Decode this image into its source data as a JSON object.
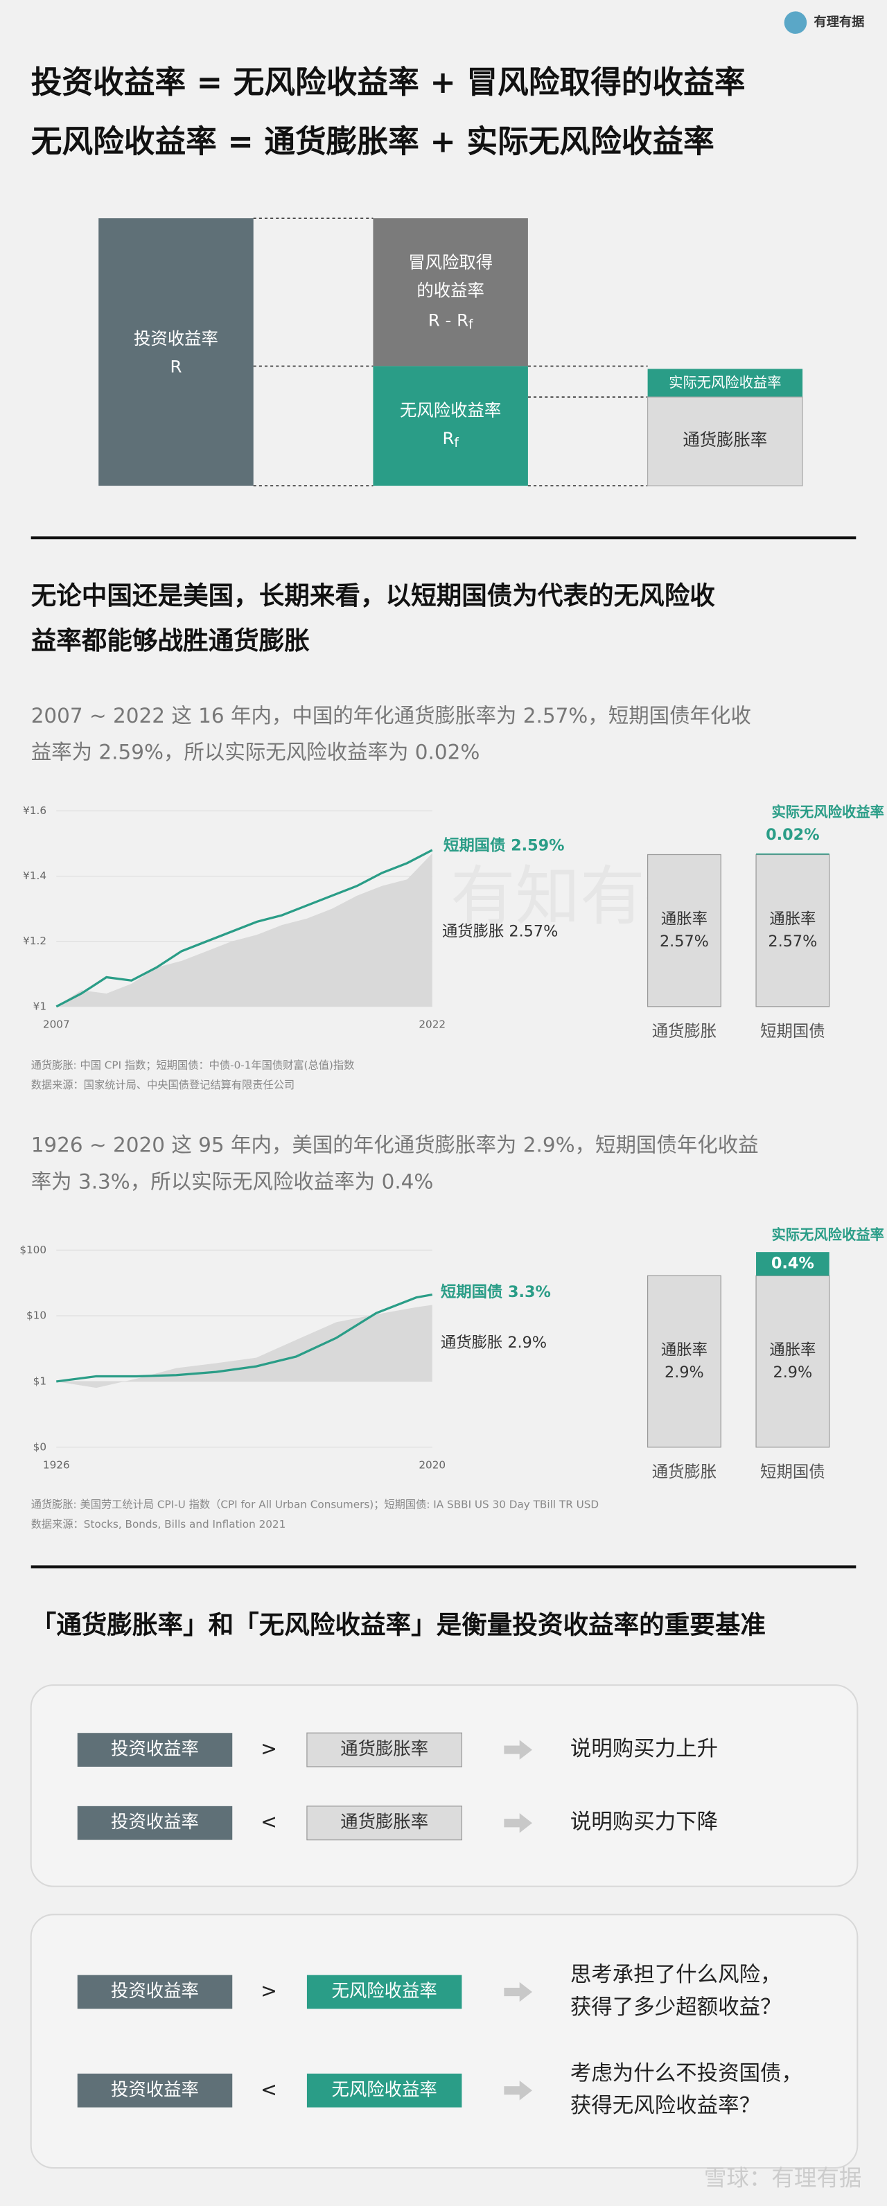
{
  "logo": {
    "name": "有理有据"
  },
  "header": {
    "line1": "投资收益率 = 无风险收益率 + 冒风险取得的收益率",
    "line2": "无风险收益率 = 通货膨胀率 + 实际无风险收益率"
  },
  "diagram": {
    "total": "投资收益率",
    "total_symbol": "R",
    "risk_lines": [
      "冒风险取得",
      "的收益率"
    ],
    "risk_formula": {
      "main": "R - R",
      "sub": "f"
    },
    "riskfree": "无风险收益率",
    "riskfree_symbol": {
      "main": "R",
      "sub": "f"
    },
    "real": "实际无风险收益率",
    "inflation": "通货膨胀率"
  },
  "section1": {
    "title_lines": [
      "无论中国还是美国，长期来看，以短期国债为代表的无风险收",
      "益率都能够战胜通货膨胀"
    ],
    "china_text": [
      "2007 ~ 2022 这 16 年内，中国的年化通货膨胀率为 2.57%，短期国债年化收",
      "益率为 2.59%，所以实际无风险收益率为 0.02%"
    ],
    "china_sources": [
      "通货膨胀: 中国 CPI 指数；短期国债：中债-0-1年国债财富(总值)指数",
      "数据来源：国家统计局、中央国债登记结算有限责任公司"
    ],
    "us_text": [
      "1926 ~ 2020 这 95 年内，美国的年化通货膨胀率为 2.9%，短期国债年化收益",
      "率为 3.3%，所以实际无风险收益率为 0.4%"
    ],
    "us_sources": [
      "通货膨胀: 美国劳工统计局 CPI-U 指数（CPI for All Urban Consumers)；短期国债: IA SBBI US 30 Day TBill TR USD",
      "数据来源：Stocks, Bonds, Bills and Inflation 2021"
    ]
  },
  "chart_data": [
    {
      "type": "line",
      "x": [
        2007,
        2008,
        2009,
        2010,
        2011,
        2012,
        2013,
        2014,
        2015,
        2016,
        2017,
        2018,
        2019,
        2020,
        2021,
        2022
      ],
      "xlim": [
        2007,
        2022
      ],
      "xticks": [
        2007,
        2022
      ],
      "ylim": [
        1,
        1.6
      ],
      "yticks": [
        {
          "value": 1,
          "label": "¥1"
        },
        {
          "value": 1.2,
          "label": "¥1.2"
        },
        {
          "value": 1.4,
          "label": "¥1.4"
        },
        {
          "value": 1.6,
          "label": "¥1.6"
        }
      ],
      "log_scale": false,
      "series": [
        {
          "name": "通货膨胀 2.57%",
          "color": "#d9d9d9",
          "kind": "area",
          "values": [
            1,
            1.05,
            1.04,
            1.07,
            1.12,
            1.14,
            1.17,
            1.2,
            1.22,
            1.25,
            1.27,
            1.3,
            1.34,
            1.37,
            1.39,
            1.47
          ]
        },
        {
          "name": "短期国债 2.59%",
          "color": "#2a9d87",
          "kind": "line",
          "values": [
            1,
            1.04,
            1.09,
            1.08,
            1.12,
            1.17,
            1.2,
            1.23,
            1.26,
            1.28,
            1.31,
            1.34,
            1.37,
            1.41,
            1.44,
            1.48
          ]
        }
      ]
    },
    {
      "type": "stacked_bar",
      "categories": [
        "通货膨胀",
        "短期国债"
      ],
      "series": [
        {
          "name": "通胀率",
          "color": "#dcdcdc",
          "values": [
            2.57,
            2.57
          ],
          "value_labels": [
            "2.57%",
            "2.57%"
          ]
        },
        {
          "name": "实际无风险收益率",
          "color": "#2a9d87",
          "values": [
            null,
            0.02
          ],
          "value_labels": [
            null,
            "0.02%"
          ]
        }
      ]
    },
    {
      "type": "line",
      "x": [
        1926,
        1936,
        1946,
        1956,
        1966,
        1976,
        1986,
        1996,
        2006,
        2016,
        2020
      ],
      "xlim": [
        1926,
        2020
      ],
      "xticks": [
        1926,
        2020
      ],
      "ylim": [
        0.1,
        100
      ],
      "yticks": [
        {
          "value": 0.1,
          "label": "$0"
        },
        {
          "value": 1,
          "label": "$1"
        },
        {
          "value": 10,
          "label": "$10"
        },
        {
          "value": 100,
          "label": "$100"
        }
      ],
      "log_scale": true,
      "series": [
        {
          "name": "通货膨胀 2.9%",
          "color": "#d9d9d9",
          "kind": "area",
          "values": [
            1,
            0.8,
            1.1,
            1.6,
            1.9,
            2.3,
            4.3,
            8,
            10.5,
            13.5,
            14.6
          ]
        },
        {
          "name": "短期国债 3.3%",
          "color": "#2a9d87",
          "kind": "line",
          "values": [
            1,
            1.2,
            1.2,
            1.25,
            1.4,
            1.7,
            2.4,
            4.6,
            11,
            19,
            21
          ]
        }
      ]
    },
    {
      "type": "stacked_bar",
      "categories": [
        "通货膨胀",
        "短期国债"
      ],
      "series": [
        {
          "name": "通胀率",
          "color": "#dcdcdc",
          "values": [
            2.9,
            2.9
          ],
          "value_labels": [
            "2.9%",
            "2.9%"
          ]
        },
        {
          "name": "实际无风险收益率",
          "color": "#2a9d87",
          "values": [
            null,
            0.4
          ],
          "value_labels": [
            null,
            "0.4%"
          ]
        }
      ]
    }
  ],
  "section2": {
    "title": "「通货膨胀率」和「无风险收益率」是衡量投资收益率的重要基准",
    "groups": [
      {
        "rows": [
          {
            "left": "投资收益率",
            "op": ">",
            "right": "通货膨胀率",
            "result": [
              "说明购买力上升"
            ]
          },
          {
            "left": "投资收益率",
            "op": "<",
            "right": "通货膨胀率",
            "result": [
              "说明购买力下降"
            ]
          }
        ]
      },
      {
        "rows": [
          {
            "left": "投资收益率",
            "op": ">",
            "right": "无风险收益率",
            "result": [
              "思考承担了什么风险，",
              "获得了多少超额收益？"
            ]
          },
          {
            "left": "投资收益率",
            "op": "<",
            "right": "无风险收益率",
            "result": [
              "考虑为什么不投资国债，",
              "获得无风险收益率？"
            ]
          }
        ]
      }
    ]
  },
  "watermark": "有知有行",
  "footer": "雪球：有理有据"
}
